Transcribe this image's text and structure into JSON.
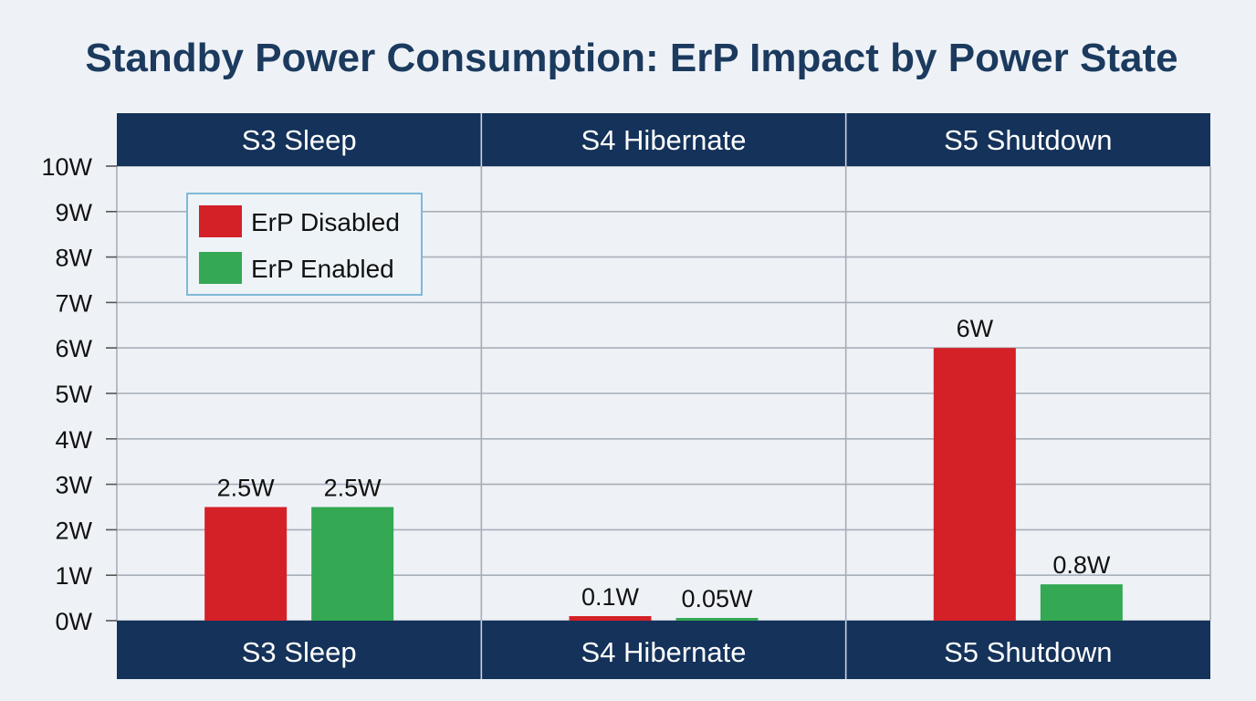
{
  "chart_data": {
    "type": "bar",
    "title": "Standby Power Consumption: ErP Impact by Power State",
    "categories": [
      "S3 Sleep",
      "S4 Hibernate",
      "S5 Shutdown"
    ],
    "y_tick_labels": [
      "0W",
      "1W",
      "2W",
      "3W",
      "4W",
      "5W",
      "6W",
      "7W",
      "8W",
      "9W",
      "10W"
    ],
    "ylim": [
      0,
      10
    ],
    "grid": true,
    "legend_position": "top-left",
    "series": [
      {
        "name": "ErP Disabled",
        "color": "#d42027",
        "values": [
          2.5,
          0.1,
          6
        ],
        "labels": [
          "2.5W",
          "0.1W",
          "6W"
        ]
      },
      {
        "name": "ErP Enabled",
        "color": "#34a853",
        "values": [
          2.5,
          0.05,
          0.8
        ],
        "labels": [
          "2.5W",
          "0.05W",
          "0.8W"
        ]
      }
    ]
  },
  "colors": {
    "band": "#14325a",
    "grid": "#a7aeb8",
    "background": "#eef2f7",
    "title": "#1b3a5e",
    "legend_border": "#7fbad6"
  }
}
